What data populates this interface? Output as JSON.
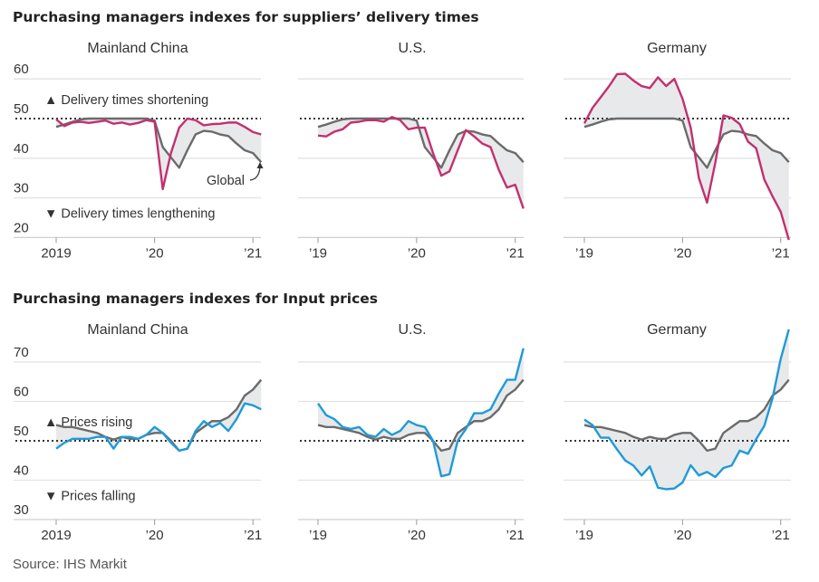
{
  "sections": [
    {
      "title": "Purchasing managers indexes for suppliers’ delivery times",
      "annotation_up": "▲ Delivery times shortening",
      "annotation_down": "▼ Delivery times lengthening",
      "y_ticks": [
        "60",
        "50",
        "40",
        "30",
        "20"
      ]
    },
    {
      "title": "Purchasing managers indexes for Input prices",
      "annotation_up": "▲ Prices rising",
      "annotation_down": "▼ Prices falling",
      "y_ticks": [
        "70",
        "60",
        "50",
        "40",
        "30"
      ]
    }
  ],
  "global_label": "Global",
  "source": "Source: IHS Markit",
  "colors": {
    "delivery": "#c2306f",
    "prices": "#1e9bd7",
    "global": "#6b6b6b",
    "fill": "#e8e9eb",
    "reference": "#333333",
    "grid": "#e2e2e2"
  },
  "chart_data": [
    {
      "type": "line",
      "section": 0,
      "title": "Mainland China",
      "x_tick_labels": [
        "2019",
        "’20",
        "’21"
      ],
      "ylim": [
        20,
        60
      ],
      "reference": 50,
      "x": [
        "2019-01",
        "2019-02",
        "2019-03",
        "2019-04",
        "2019-05",
        "2019-06",
        "2019-07",
        "2019-08",
        "2019-09",
        "2019-10",
        "2019-11",
        "2019-12",
        "2020-01",
        "2020-02",
        "2020-03",
        "2020-04",
        "2020-05",
        "2020-06",
        "2020-07",
        "2020-08",
        "2020-09",
        "2020-10",
        "2020-11",
        "2020-12",
        "2021-01",
        "2021-02"
      ],
      "series": [
        {
          "values": [
            49.8,
            48.1,
            49,
            49.2,
            48.9,
            49.2,
            49.5,
            48.7,
            49,
            48.5,
            48.9,
            49.6,
            49.2,
            32.2,
            41.3,
            47.7,
            50,
            49.6,
            48.3,
            48.6,
            48.7,
            49,
            49,
            47.9,
            46.6,
            46
          ]
        },
        {
          "name": "Global",
          "values": [
            47.9,
            48.5,
            49.2,
            49.8,
            50,
            50,
            50,
            50,
            50,
            50,
            50,
            50,
            49.5,
            42.8,
            40.2,
            37.6,
            42,
            46,
            46.9,
            46.7,
            46,
            45.6,
            43.7,
            42,
            41.3,
            39
          ]
        }
      ]
    },
    {
      "type": "line",
      "section": 0,
      "title": "U.S.",
      "x_tick_labels": [
        "’19",
        "’20",
        "’21"
      ],
      "ylim": [
        20,
        60
      ],
      "reference": 50,
      "x": [
        "2019-01",
        "2019-02",
        "2019-03",
        "2019-04",
        "2019-05",
        "2019-06",
        "2019-07",
        "2019-08",
        "2019-09",
        "2019-10",
        "2019-11",
        "2019-12",
        "2020-01",
        "2020-02",
        "2020-03",
        "2020-04",
        "2020-05",
        "2020-06",
        "2020-07",
        "2020-08",
        "2020-09",
        "2020-10",
        "2020-11",
        "2020-12",
        "2021-01",
        "2021-02"
      ],
      "series": [
        {
          "values": [
            45.7,
            45.5,
            46.7,
            47.3,
            49,
            49.2,
            49.6,
            49.6,
            49.2,
            50.4,
            49.6,
            47.3,
            47.7,
            47.7,
            41.3,
            35.6,
            36.7,
            42,
            47.1,
            45.5,
            43.7,
            42.8,
            37.1,
            32.6,
            33.3,
            27.3
          ]
        },
        {
          "name": "Global",
          "values": [
            47.9,
            48.5,
            49.2,
            49.8,
            50,
            50,
            50,
            50,
            50,
            50,
            50,
            50,
            49.5,
            42.8,
            40.2,
            37.6,
            42,
            46,
            46.9,
            46.7,
            46,
            45.6,
            43.7,
            42,
            41.3,
            39
          ]
        }
      ]
    },
    {
      "type": "line",
      "section": 0,
      "title": "Germany",
      "x_tick_labels": [
        "’19",
        "’20",
        "’21"
      ],
      "ylim": [
        20,
        60
      ],
      "reference": 50,
      "x": [
        "2019-01",
        "2019-02",
        "2019-03",
        "2019-04",
        "2019-05",
        "2019-06",
        "2019-07",
        "2019-08",
        "2019-09",
        "2019-10",
        "2019-11",
        "2019-12",
        "2020-01",
        "2020-02",
        "2020-03",
        "2020-04",
        "2020-05",
        "2020-06",
        "2020-07",
        "2020-08",
        "2020-09",
        "2020-10",
        "2020-11",
        "2020-12",
        "2021-01",
        "2021-02"
      ],
      "series": [
        {
          "values": [
            48.8,
            52.7,
            55.4,
            58.1,
            61.2,
            61.3,
            59.6,
            58.2,
            57.7,
            60.4,
            58.2,
            60,
            55,
            47.7,
            35,
            28.8,
            38.8,
            50.8,
            50.2,
            48.6,
            44.2,
            42.5,
            34.6,
            30.4,
            26.5,
            19.4
          ]
        },
        {
          "name": "Global",
          "values": [
            47.9,
            48.5,
            49.2,
            49.8,
            50,
            50,
            50,
            50,
            50,
            50,
            50,
            50,
            49.5,
            42.8,
            40.2,
            37.6,
            42,
            46,
            46.9,
            46.7,
            46,
            45.6,
            43.7,
            42,
            41.3,
            39
          ]
        }
      ]
    },
    {
      "type": "line",
      "section": 1,
      "title": "Mainland China",
      "x_tick_labels": [
        "2019",
        "’20",
        "’21"
      ],
      "ylim": [
        30,
        70
      ],
      "reference": 50,
      "x": [
        "2019-01",
        "2019-02",
        "2019-03",
        "2019-04",
        "2019-05",
        "2019-06",
        "2019-07",
        "2019-08",
        "2019-09",
        "2019-10",
        "2019-11",
        "2019-12",
        "2020-01",
        "2020-02",
        "2020-03",
        "2020-04",
        "2020-05",
        "2020-06",
        "2020-07",
        "2020-08",
        "2020-09",
        "2020-10",
        "2020-11",
        "2020-12",
        "2021-01",
        "2021-02"
      ],
      "series": [
        {
          "values": [
            48,
            49.5,
            50.5,
            50.5,
            50.5,
            51,
            51,
            48,
            51,
            51,
            50.5,
            51.5,
            53.5,
            52,
            49.5,
            47.5,
            48,
            52.5,
            55,
            53.5,
            54.5,
            52.5,
            55.5,
            59.5,
            59,
            58
          ]
        },
        {
          "name": "Global",
          "values": [
            54,
            53.5,
            53.5,
            53,
            52.5,
            52,
            51,
            50.3,
            51,
            50.5,
            50.5,
            51.5,
            52,
            52,
            50,
            47.5,
            48,
            52,
            53.5,
            55,
            55,
            56,
            58,
            61.5,
            63,
            65.5
          ]
        }
      ]
    },
    {
      "type": "line",
      "section": 1,
      "title": "U.S.",
      "x_tick_labels": [
        "’19",
        "’20",
        "’21"
      ],
      "ylim": [
        30,
        70
      ],
      "reference": 50,
      "x": [
        "2019-01",
        "2019-02",
        "2019-03",
        "2019-04",
        "2019-05",
        "2019-06",
        "2019-07",
        "2019-08",
        "2019-09",
        "2019-10",
        "2019-11",
        "2019-12",
        "2020-01",
        "2020-02",
        "2020-03",
        "2020-04",
        "2020-05",
        "2020-06",
        "2020-07",
        "2020-08",
        "2020-09",
        "2020-10",
        "2020-11",
        "2020-12",
        "2021-01",
        "2021-02"
      ],
      "series": [
        {
          "values": [
            59.5,
            56.5,
            55.5,
            53.5,
            53,
            53.5,
            51.5,
            51,
            53,
            51.5,
            52.5,
            55,
            54,
            53.5,
            50,
            41,
            41.5,
            50,
            53,
            57,
            57,
            58,
            62,
            65.5,
            65.5,
            73.5
          ]
        },
        {
          "name": "Global",
          "values": [
            54,
            53.5,
            53.5,
            53,
            52.5,
            52,
            51,
            50.3,
            51,
            50.5,
            50.5,
            51.5,
            52,
            52,
            50,
            47.5,
            48,
            52,
            53.5,
            55,
            55,
            56,
            58,
            61.5,
            63,
            65.5
          ]
        }
      ]
    },
    {
      "type": "line",
      "section": 1,
      "title": "Germany",
      "x_tick_labels": [
        "’19",
        "’20",
        "’21"
      ],
      "ylim": [
        30,
        70
      ],
      "reference": 50,
      "x": [
        "2019-01",
        "2019-02",
        "2019-03",
        "2019-04",
        "2019-05",
        "2019-06",
        "2019-07",
        "2019-08",
        "2019-09",
        "2019-10",
        "2019-11",
        "2019-12",
        "2020-01",
        "2020-02",
        "2020-03",
        "2020-04",
        "2020-05",
        "2020-06",
        "2020-07",
        "2020-08",
        "2020-09",
        "2020-10",
        "2020-11",
        "2020-12",
        "2021-01",
        "2021-02"
      ],
      "series": [
        {
          "values": [
            55.4,
            54,
            50.8,
            50.8,
            47.8,
            45,
            43.7,
            41.2,
            43.5,
            38.1,
            37.7,
            37.9,
            39.4,
            43.8,
            41.2,
            42.1,
            40.8,
            43.1,
            43.7,
            47.5,
            46.7,
            50.4,
            53.8,
            60.8,
            70.8,
            78.3
          ]
        },
        {
          "name": "Global",
          "values": [
            54,
            53.5,
            53.5,
            53,
            52.5,
            52,
            51,
            50.3,
            51,
            50.5,
            50.5,
            51.5,
            52,
            52,
            50,
            47.5,
            48,
            52,
            53.5,
            55,
            55,
            56,
            58,
            61.5,
            63,
            65.5
          ]
        }
      ]
    }
  ]
}
